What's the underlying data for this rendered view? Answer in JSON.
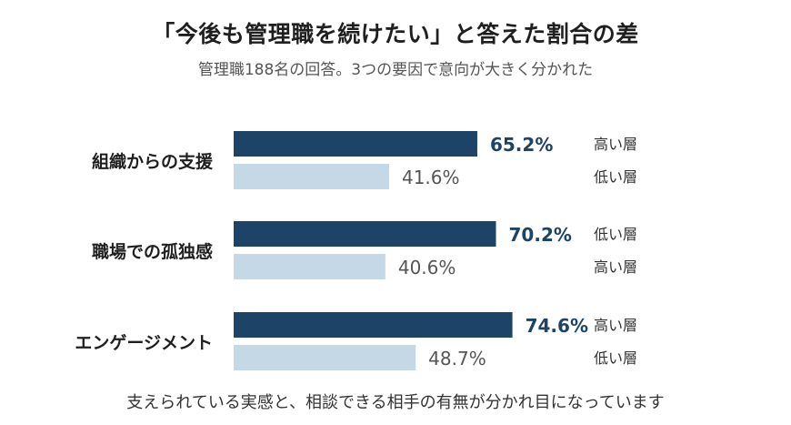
{
  "title": "「今後も管理職を続けたい」と答えた割合の差",
  "subtitle": "管理職188名の回答。3つの要因で意向が大きく分かれた",
  "footer": "支えられている実感と、相談できる相手の有無が分かれ目になっています",
  "colors": {
    "primary_bar": "#1d4467",
    "secondary_bar": "#c4d8e6"
  },
  "chart_data": {
    "type": "bar",
    "orientation": "horizontal",
    "xlim": [
      0,
      100
    ],
    "grid": false,
    "categories": [
      "組織からの支援",
      "職場での孤独感",
      "エンゲージメント"
    ],
    "groups": [
      {
        "category": "組織からの支援",
        "bars": [
          {
            "label": "高い層",
            "value": 65.2,
            "display": "65.2%",
            "emphasis": true
          },
          {
            "label": "低い層",
            "value": 41.6,
            "display": "41.6%",
            "emphasis": false
          }
        ]
      },
      {
        "category": "職場での孤独感",
        "bars": [
          {
            "label": "低い層",
            "value": 70.2,
            "display": "70.2%",
            "emphasis": true
          },
          {
            "label": "高い層",
            "value": 40.6,
            "display": "40.6%",
            "emphasis": false
          }
        ]
      },
      {
        "category": "エンゲージメント",
        "bars": [
          {
            "label": "高い層",
            "value": 74.6,
            "display": "74.6%",
            "emphasis": true
          },
          {
            "label": "低い層",
            "value": 48.7,
            "display": "48.7%",
            "emphasis": false
          }
        ]
      }
    ]
  }
}
